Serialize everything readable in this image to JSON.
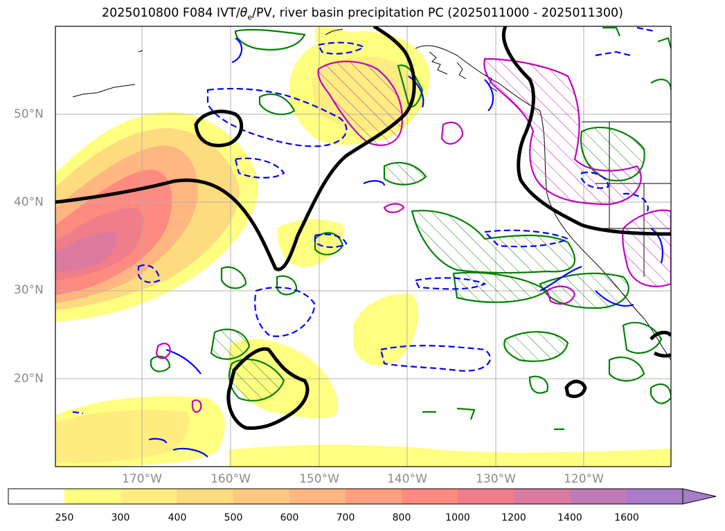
{
  "title": "2025010800 F084 IVT/θe/PV, river basin precipitation PC (2025011000 - 2025011300)",
  "title_parts": {
    "prefix": "2025010800 F084 IVT/",
    "theta": "θ",
    "sub": "e",
    "suffix": "/PV, river basin precipitation PC (2025011000 - 2025011300)"
  },
  "lat_labels": [
    "50°N",
    "40°N",
    "30°N",
    "20°N"
  ],
  "lon_labels": [
    "170°W",
    "160°W",
    "150°W",
    "140°W",
    "130°W",
    "120°W"
  ],
  "colorbar": {
    "ticks": [
      "250",
      "300",
      "400",
      "500",
      "600",
      "700",
      "800",
      "1000",
      "1200",
      "1400",
      "1600"
    ],
    "colors": [
      "#ffff80",
      "#ffed80",
      "#ffdb80",
      "#ffc880",
      "#ffb680",
      "#ffa080",
      "#ff8a80",
      "#f07d8a",
      "#dd7aa0",
      "#c07ab8",
      "#a87cc8"
    ],
    "extend": "max"
  },
  "legend_colors": {
    "ivt_contour": "#000000",
    "precip_pc": "#008000",
    "pv_dashed": "#0000ff",
    "theta_e": "#c000c0"
  }
}
